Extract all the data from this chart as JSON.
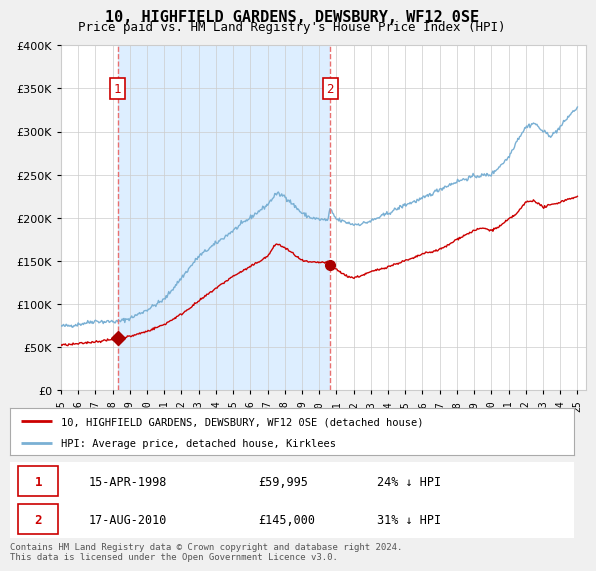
{
  "title": "10, HIGHFIELD GARDENS, DEWSBURY, WF12 0SE",
  "subtitle": "Price paid vs. HM Land Registry's House Price Index (HPI)",
  "footer": "Contains HM Land Registry data © Crown copyright and database right 2024.\nThis data is licensed under the Open Government Licence v3.0.",
  "legend_line1": "10, HIGHFIELD GARDENS, DEWSBURY, WF12 0SE (detached house)",
  "legend_line2": "HPI: Average price, detached house, Kirklees",
  "sale1_date": "15-APR-1998",
  "sale1_price": "£59,995",
  "sale1_hpi": "24% ↓ HPI",
  "sale2_date": "17-AUG-2010",
  "sale2_price": "£145,000",
  "sale2_hpi": "31% ↓ HPI",
  "sale1_year": 1998.29,
  "sale1_value": 59995,
  "sale2_year": 2010.63,
  "sale2_value": 145000,
  "hpi_color": "#7ab0d4",
  "price_color": "#cc0000",
  "sale_marker_color": "#aa0000",
  "vline_color": "#e87070",
  "shade_color": "#ddeeff",
  "ylim_max": 400000,
  "xlim_start": 1995,
  "xlim_end": 2025.5,
  "background_color": "#f0f0f0",
  "plot_bg_color": "#ffffff",
  "grid_color": "#cccccc",
  "title_fontsize": 11,
  "subtitle_fontsize": 9
}
